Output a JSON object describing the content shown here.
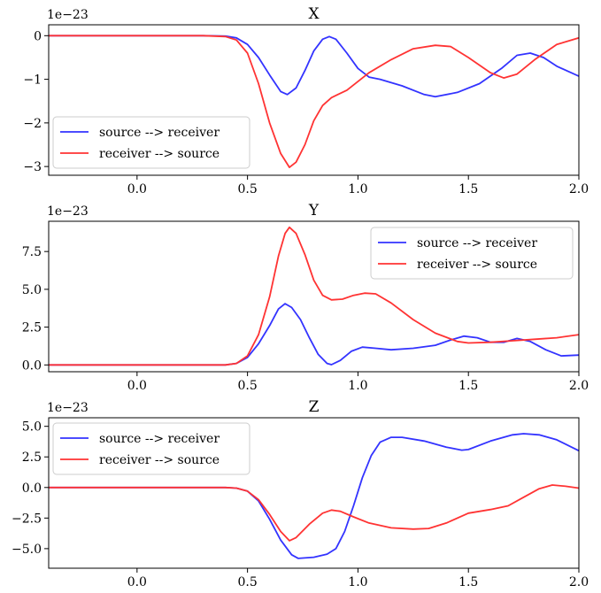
{
  "chart_data": [
    {
      "type": "line",
      "title": "X",
      "offset_text": "1e−23",
      "xlim": [
        -0.4,
        2.0
      ],
      "ylim": [
        -3.2,
        0.25
      ],
      "xticks": [
        0.0,
        0.5,
        1.0,
        1.5,
        2.0
      ],
      "xtick_labels": [
        "0.0",
        "0.5",
        "1.0",
        "1.5",
        "2.0"
      ],
      "yticks": [
        0,
        -1,
        -2,
        -3
      ],
      "ytick_labels": [
        "0",
        "−1",
        "−2",
        "−3"
      ],
      "legend": "lower-left",
      "grid": false,
      "series": [
        {
          "name": "source --> receiver",
          "color": "#3333ff",
          "points": [
            [
              -0.4,
              0
            ],
            [
              0.3,
              0
            ],
            [
              0.4,
              -0.01
            ],
            [
              0.45,
              -0.05
            ],
            [
              0.5,
              -0.2
            ],
            [
              0.55,
              -0.5
            ],
            [
              0.6,
              -0.9
            ],
            [
              0.65,
              -1.28
            ],
            [
              0.68,
              -1.35
            ],
            [
              0.72,
              -1.2
            ],
            [
              0.76,
              -0.8
            ],
            [
              0.8,
              -0.35
            ],
            [
              0.84,
              -0.08
            ],
            [
              0.87,
              -0.02
            ],
            [
              0.9,
              -0.08
            ],
            [
              0.95,
              -0.4
            ],
            [
              1.0,
              -0.75
            ],
            [
              1.05,
              -0.95
            ],
            [
              1.1,
              -1.0
            ],
            [
              1.2,
              -1.15
            ],
            [
              1.3,
              -1.35
            ],
            [
              1.35,
              -1.4
            ],
            [
              1.45,
              -1.3
            ],
            [
              1.55,
              -1.1
            ],
            [
              1.65,
              -0.75
            ],
            [
              1.72,
              -0.45
            ],
            [
              1.78,
              -0.4
            ],
            [
              1.84,
              -0.5
            ],
            [
              1.9,
              -0.7
            ],
            [
              2.0,
              -0.93
            ]
          ]
        },
        {
          "name": "receiver --> source",
          "color": "#ff3333",
          "points": [
            [
              -0.4,
              0
            ],
            [
              0.3,
              0
            ],
            [
              0.4,
              -0.02
            ],
            [
              0.45,
              -0.1
            ],
            [
              0.5,
              -0.4
            ],
            [
              0.55,
              -1.1
            ],
            [
              0.6,
              -2.0
            ],
            [
              0.65,
              -2.7
            ],
            [
              0.69,
              -3.02
            ],
            [
              0.72,
              -2.9
            ],
            [
              0.76,
              -2.5
            ],
            [
              0.8,
              -1.95
            ],
            [
              0.84,
              -1.6
            ],
            [
              0.88,
              -1.42
            ],
            [
              0.95,
              -1.25
            ],
            [
              1.0,
              -1.05
            ],
            [
              1.05,
              -0.85
            ],
            [
              1.15,
              -0.55
            ],
            [
              1.25,
              -0.3
            ],
            [
              1.35,
              -0.22
            ],
            [
              1.42,
              -0.25
            ],
            [
              1.5,
              -0.5
            ],
            [
              1.6,
              -0.85
            ],
            [
              1.66,
              -0.97
            ],
            [
              1.72,
              -0.88
            ],
            [
              1.8,
              -0.55
            ],
            [
              1.9,
              -0.2
            ],
            [
              2.0,
              -0.05
            ]
          ]
        }
      ]
    },
    {
      "type": "line",
      "title": "Y",
      "offset_text": "1e−23",
      "xlim": [
        -0.4,
        2.0
      ],
      "ylim": [
        -0.45,
        9.5
      ],
      "xticks": [
        0.0,
        0.5,
        1.0,
        1.5,
        2.0
      ],
      "xtick_labels": [
        "0.0",
        "0.5",
        "1.0",
        "1.5",
        "2.0"
      ],
      "yticks": [
        0.0,
        2.5,
        5.0,
        7.5
      ],
      "ytick_labels": [
        "0.0",
        "2.5",
        "5.0",
        "7.5"
      ],
      "legend": "upper-right",
      "grid": false,
      "series": [
        {
          "name": "source --> receiver",
          "color": "#3333ff",
          "points": [
            [
              -0.4,
              0
            ],
            [
              0.4,
              0
            ],
            [
              0.45,
              0.1
            ],
            [
              0.5,
              0.5
            ],
            [
              0.55,
              1.4
            ],
            [
              0.6,
              2.6
            ],
            [
              0.64,
              3.7
            ],
            [
              0.67,
              4.05
            ],
            [
              0.7,
              3.8
            ],
            [
              0.74,
              3.0
            ],
            [
              0.78,
              1.8
            ],
            [
              0.82,
              0.7
            ],
            [
              0.86,
              0.1
            ],
            [
              0.88,
              0.02
            ],
            [
              0.92,
              0.3
            ],
            [
              0.97,
              0.9
            ],
            [
              1.02,
              1.18
            ],
            [
              1.08,
              1.1
            ],
            [
              1.15,
              1.0
            ],
            [
              1.25,
              1.1
            ],
            [
              1.35,
              1.3
            ],
            [
              1.42,
              1.65
            ],
            [
              1.48,
              1.9
            ],
            [
              1.54,
              1.8
            ],
            [
              1.6,
              1.5
            ],
            [
              1.66,
              1.5
            ],
            [
              1.72,
              1.75
            ],
            [
              1.78,
              1.55
            ],
            [
              1.85,
              1.0
            ],
            [
              1.92,
              0.6
            ],
            [
              2.0,
              0.65
            ]
          ]
        },
        {
          "name": "receiver --> source",
          "color": "#ff3333",
          "points": [
            [
              -0.4,
              0
            ],
            [
              0.4,
              0
            ],
            [
              0.45,
              0.1
            ],
            [
              0.5,
              0.6
            ],
            [
              0.55,
              2.0
            ],
            [
              0.6,
              4.5
            ],
            [
              0.64,
              7.2
            ],
            [
              0.67,
              8.7
            ],
            [
              0.69,
              9.1
            ],
            [
              0.72,
              8.7
            ],
            [
              0.76,
              7.3
            ],
            [
              0.8,
              5.6
            ],
            [
              0.84,
              4.6
            ],
            [
              0.88,
              4.3
            ],
            [
              0.93,
              4.35
            ],
            [
              0.98,
              4.6
            ],
            [
              1.03,
              4.75
            ],
            [
              1.08,
              4.7
            ],
            [
              1.15,
              4.1
            ],
            [
              1.25,
              3.0
            ],
            [
              1.35,
              2.1
            ],
            [
              1.45,
              1.55
            ],
            [
              1.5,
              1.45
            ],
            [
              1.6,
              1.5
            ],
            [
              1.7,
              1.6
            ],
            [
              1.8,
              1.7
            ],
            [
              1.9,
              1.8
            ],
            [
              2.0,
              2.0
            ]
          ]
        }
      ]
    },
    {
      "type": "line",
      "title": "Z",
      "offset_text": "1e−23",
      "xlim": [
        -0.4,
        2.0
      ],
      "ylim": [
        -6.6,
        5.7
      ],
      "xticks": [
        0.0,
        0.5,
        1.0,
        1.5,
        2.0
      ],
      "xtick_labels": [
        "0.0",
        "0.5",
        "1.0",
        "1.5",
        "2.0"
      ],
      "yticks": [
        5.0,
        2.5,
        0.0,
        -2.5,
        -5.0
      ],
      "ytick_labels": [
        "5.0",
        "2.5",
        "0.0",
        "−2.5",
        "−5.0"
      ],
      "legend": "upper-left",
      "grid": false,
      "series": [
        {
          "name": "source --> receiver",
          "color": "#3333ff",
          "points": [
            [
              -0.4,
              0
            ],
            [
              0.4,
              0
            ],
            [
              0.45,
              -0.05
            ],
            [
              0.5,
              -0.3
            ],
            [
              0.55,
              -1.1
            ],
            [
              0.6,
              -2.6
            ],
            [
              0.65,
              -4.3
            ],
            [
              0.7,
              -5.5
            ],
            [
              0.73,
              -5.8
            ],
            [
              0.8,
              -5.7
            ],
            [
              0.86,
              -5.45
            ],
            [
              0.9,
              -5.0
            ],
            [
              0.94,
              -3.6
            ],
            [
              0.98,
              -1.5
            ],
            [
              1.02,
              0.8
            ],
            [
              1.06,
              2.6
            ],
            [
              1.1,
              3.7
            ],
            [
              1.15,
              4.1
            ],
            [
              1.2,
              4.1
            ],
            [
              1.3,
              3.8
            ],
            [
              1.4,
              3.3
            ],
            [
              1.47,
              3.05
            ],
            [
              1.5,
              3.1
            ],
            [
              1.6,
              3.8
            ],
            [
              1.7,
              4.3
            ],
            [
              1.75,
              4.4
            ],
            [
              1.82,
              4.3
            ],
            [
              1.9,
              3.9
            ],
            [
              2.0,
              3.0
            ]
          ]
        },
        {
          "name": "receiver --> source",
          "color": "#ff3333",
          "points": [
            [
              -0.4,
              0
            ],
            [
              0.4,
              0
            ],
            [
              0.45,
              -0.05
            ],
            [
              0.5,
              -0.3
            ],
            [
              0.55,
              -1.0
            ],
            [
              0.6,
              -2.2
            ],
            [
              0.65,
              -3.6
            ],
            [
              0.69,
              -4.35
            ],
            [
              0.72,
              -4.1
            ],
            [
              0.78,
              -3.0
            ],
            [
              0.84,
              -2.1
            ],
            [
              0.88,
              -1.85
            ],
            [
              0.92,
              -1.95
            ],
            [
              0.98,
              -2.4
            ],
            [
              1.05,
              -2.9
            ],
            [
              1.15,
              -3.3
            ],
            [
              1.25,
              -3.4
            ],
            [
              1.32,
              -3.35
            ],
            [
              1.4,
              -2.9
            ],
            [
              1.5,
              -2.1
            ],
            [
              1.6,
              -1.8
            ],
            [
              1.68,
              -1.5
            ],
            [
              1.75,
              -0.8
            ],
            [
              1.82,
              -0.1
            ],
            [
              1.88,
              0.2
            ],
            [
              1.94,
              0.1
            ],
            [
              2.0,
              -0.05
            ]
          ]
        }
      ]
    }
  ]
}
